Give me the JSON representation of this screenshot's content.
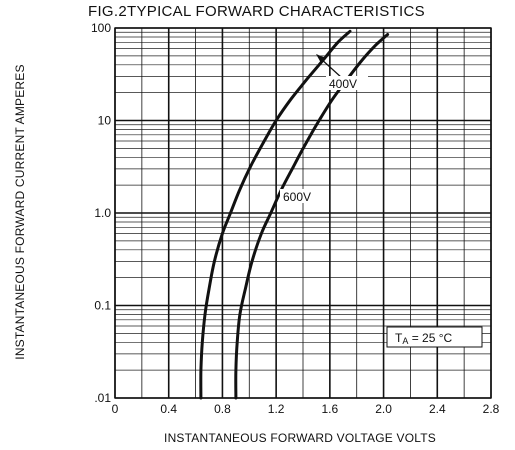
{
  "chart_data": {
    "type": "line",
    "title": "FIG.2TYPICAL FORWARD CHARACTERISTICS",
    "xlabel": "INSTANTANEOUS FORWARD VOLTAGE VOLTS",
    "ylabel": "INSTANTANEOUS FORWARD CURRENT AMPERES",
    "xlim": [
      0,
      2.8
    ],
    "ylim": [
      0.01,
      100
    ],
    "y_scale": "log",
    "x_ticks": [
      "0",
      "0.4",
      "0.8",
      "1.2",
      "1.6",
      "2.0",
      "2.4",
      "2.8"
    ],
    "y_ticks": [
      {
        "value": 0.01,
        "label": ".01"
      },
      {
        "value": 0.1,
        "label": "0.1"
      },
      {
        "value": 1,
        "label": "1.0"
      },
      {
        "value": 10,
        "label": "10"
      },
      {
        "value": 100,
        "label": "100"
      }
    ],
    "grid": true,
    "series": [
      {
        "name": "400V",
        "color": "#111111",
        "x": [
          0.64,
          0.64,
          0.65,
          0.67,
          0.7,
          0.74,
          0.8,
          0.86,
          0.93,
          1.01,
          1.1,
          1.2,
          1.31,
          1.43,
          1.55,
          1.66,
          1.75
        ],
        "y": [
          0.01,
          0.02,
          0.04,
          0.08,
          0.15,
          0.3,
          0.6,
          1.0,
          1.8,
          3.2,
          5.6,
          10,
          17,
          28,
          45,
          70,
          92
        ]
      },
      {
        "name": "600V",
        "color": "#111111",
        "x": [
          0.9,
          0.9,
          0.91,
          0.93,
          0.97,
          1.02,
          1.09,
          1.16,
          1.24,
          1.33,
          1.42,
          1.52,
          1.62,
          1.73,
          1.84,
          1.94,
          2.03
        ],
        "y": [
          0.01,
          0.02,
          0.04,
          0.08,
          0.15,
          0.3,
          0.6,
          1.0,
          1.8,
          3.2,
          5.6,
          10,
          17,
          28,
          45,
          65,
          85
        ]
      }
    ],
    "annotations": {
      "label_400v": "400V",
      "label_600v": "600V",
      "temperature": "T",
      "temperature_sub": "A",
      "temperature_value": " = 25 °C"
    }
  }
}
